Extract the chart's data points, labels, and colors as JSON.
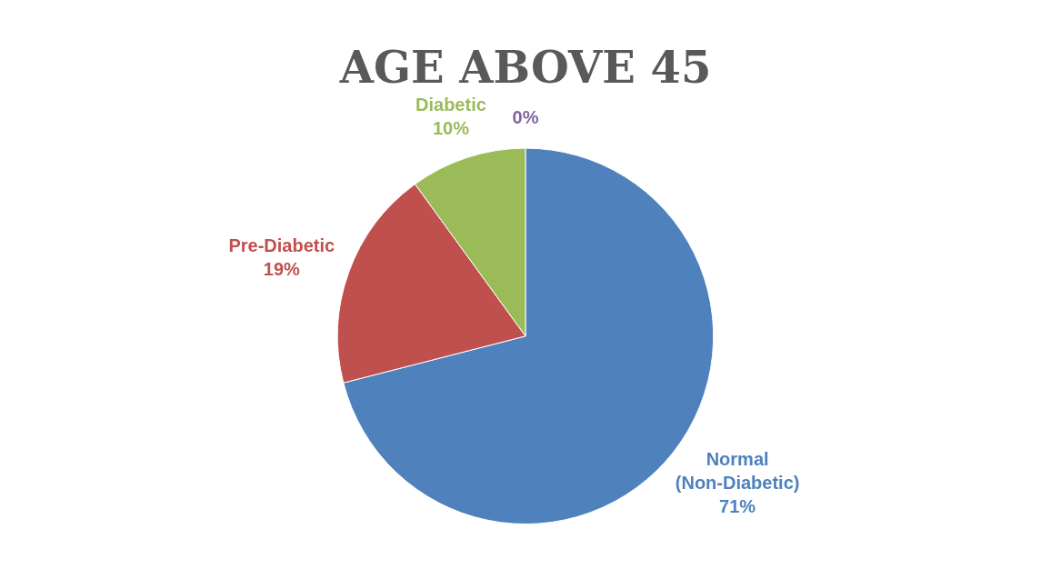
{
  "chart_data": {
    "type": "pie",
    "title": "AGE ABOVE 45",
    "categories": [
      "Normal (Non-Diabetic)",
      "Pre-Diabetic",
      "Diabetic",
      null
    ],
    "values": [
      71,
      19,
      10,
      0
    ],
    "colors": [
      "#4f81bd",
      "#c0504d",
      "#9bbb59",
      "#8064a2"
    ],
    "value_labels": [
      "71%",
      "19%",
      "10%",
      "0%"
    ],
    "legend": false
  }
}
